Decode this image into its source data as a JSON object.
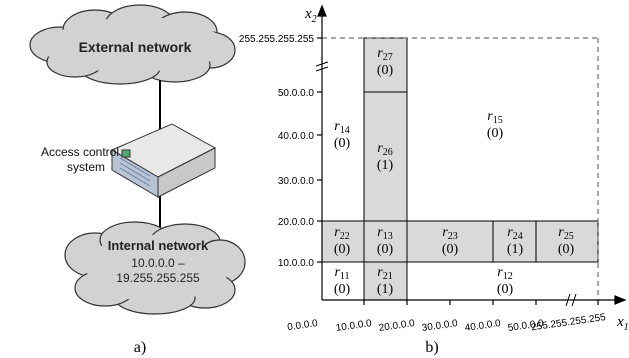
{
  "panel_a": {
    "label": "a)",
    "external": "External network",
    "internal": {
      "title": "Internal network",
      "range": [
        "10.0.0.0 –",
        "19.255.255.255"
      ]
    },
    "system": [
      "Access control",
      "system"
    ]
  },
  "panel_b": {
    "label": "b)",
    "x_axis": {
      "name": "x",
      "sub": "1"
    },
    "y_axis": {
      "name": "x",
      "sub": "2"
    },
    "origin": "0.0.0.0",
    "x_ticks": [
      "10.0.0.0",
      "20.0.0.0",
      "30.0.0.0",
      "40.0.0.0",
      "50.0.0.0",
      "255.255.255.255"
    ],
    "y_ticks": [
      "10.0.0.0",
      "20.0.0.0",
      "30.0.0.0",
      "40.0.0.0",
      "50.0.0.0",
      "255.255.255.255"
    ],
    "regions": [
      {
        "name": "r",
        "sub": "27",
        "value": "(0)"
      },
      {
        "name": "r",
        "sub": "26",
        "value": "(1)"
      },
      {
        "name": "r",
        "sub": "14",
        "value": "(0)"
      },
      {
        "name": "r",
        "sub": "15",
        "value": "(0)"
      },
      {
        "name": "r",
        "sub": "22",
        "value": "(0)"
      },
      {
        "name": "r",
        "sub": "13",
        "value": "(0)"
      },
      {
        "name": "r",
        "sub": "23",
        "value": "(0)"
      },
      {
        "name": "r",
        "sub": "24",
        "value": "(1)"
      },
      {
        "name": "r",
        "sub": "25",
        "value": "(0)"
      },
      {
        "name": "r",
        "sub": "11",
        "value": "(0)"
      },
      {
        "name": "r",
        "sub": "21",
        "value": "(1)"
      },
      {
        "name": "r",
        "sub": "12",
        "value": "(0)"
      }
    ]
  }
}
